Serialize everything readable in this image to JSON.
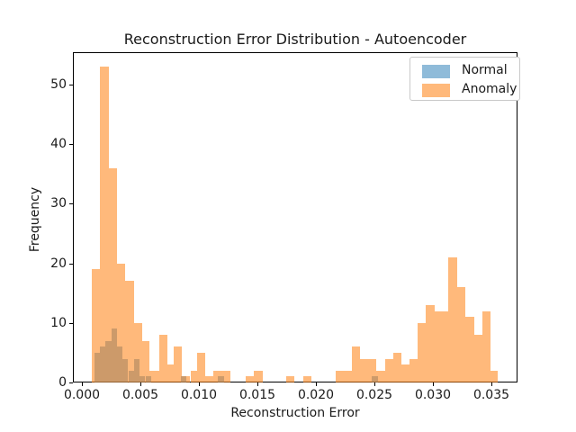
{
  "title": "Reconstruction Error Distribution - Autoencoder",
  "axes": {
    "xlabel": "Reconstruction Error",
    "ylabel": "Frequency"
  },
  "legend": {
    "items": [
      {
        "label": "Normal",
        "color": "rgba(31,119,180,0.5)"
      },
      {
        "label": "Anomaly",
        "color": "rgba(255,127,14,0.55)"
      }
    ]
  },
  "chart_data": {
    "type": "bar",
    "subtype": "overlapping-histograms",
    "title": "Reconstruction Error Distribution - Autoencoder",
    "xlabel": "Reconstruction Error",
    "ylabel": "Frequency",
    "grid": false,
    "legend_position": "upper right",
    "xlim": [
      -0.00077,
      0.03723
    ],
    "ylim": [
      0,
      55.4
    ],
    "xticks": {
      "values": [
        0.0,
        0.005,
        0.01,
        0.015,
        0.02,
        0.025,
        0.03,
        0.035
      ],
      "labels": [
        "0.000",
        "0.005",
        "0.010",
        "0.015",
        "0.020",
        "0.025",
        "0.030",
        "0.035"
      ]
    },
    "yticks": {
      "values": [
        0,
        10,
        20,
        30,
        40,
        50
      ],
      "labels": [
        "0",
        "10",
        "20",
        "30",
        "40",
        "50"
      ]
    },
    "series": [
      {
        "name": "Normal",
        "color": "rgba(31,119,180,0.5)",
        "bars": [
          [
            0.00105,
            0.00153,
            5
          ],
          [
            0.00153,
            0.00202,
            6
          ],
          [
            0.00202,
            0.00251,
            7
          ],
          [
            0.00251,
            0.00299,
            9
          ],
          [
            0.00299,
            0.00348,
            6
          ],
          [
            0.00348,
            0.00396,
            4
          ],
          [
            0.00396,
            0.00445,
            2
          ],
          [
            0.00445,
            0.00493,
            4
          ],
          [
            0.00493,
            0.00542,
            1
          ],
          [
            0.00542,
            0.0059,
            1
          ],
          [
            0.00845,
            0.00893,
            1
          ],
          [
            0.01162,
            0.01215,
            1
          ],
          [
            0.02479,
            0.02531,
            1
          ]
        ]
      },
      {
        "name": "Anomaly",
        "color": "rgba(255,127,14,0.55)",
        "bars": [
          [
            0.00082,
            0.00154,
            19
          ],
          [
            0.00154,
            0.00227,
            53
          ],
          [
            0.00227,
            0.003,
            36
          ],
          [
            0.003,
            0.00372,
            20
          ],
          [
            0.00372,
            0.00443,
            17
          ],
          [
            0.00443,
            0.00515,
            10
          ],
          [
            0.00515,
            0.00577,
            7
          ],
          [
            0.00577,
            0.00662,
            2
          ],
          [
            0.00662,
            0.00731,
            8
          ],
          [
            0.00731,
            0.00785,
            3
          ],
          [
            0.00785,
            0.00856,
            6
          ],
          [
            0.00856,
            0.00927,
            1
          ],
          [
            0.00927,
            0.00985,
            2
          ],
          [
            0.00985,
            0.01056,
            5
          ],
          [
            0.01056,
            0.01125,
            1
          ],
          [
            0.01125,
            0.01195,
            2
          ],
          [
            0.01195,
            0.01269,
            2
          ],
          [
            0.01402,
            0.01472,
            1
          ],
          [
            0.01472,
            0.01544,
            2
          ],
          [
            0.01749,
            0.01818,
            1
          ],
          [
            0.0189,
            0.01959,
            1
          ],
          [
            0.02167,
            0.02238,
            2
          ],
          [
            0.02238,
            0.02308,
            2
          ],
          [
            0.02308,
            0.02377,
            6
          ],
          [
            0.02377,
            0.02446,
            4
          ],
          [
            0.02446,
            0.02518,
            4
          ],
          [
            0.02518,
            0.0259,
            2
          ],
          [
            0.0259,
            0.02659,
            4
          ],
          [
            0.02659,
            0.02728,
            5
          ],
          [
            0.02728,
            0.02798,
            3
          ],
          [
            0.02798,
            0.02869,
            4
          ],
          [
            0.02869,
            0.02941,
            10
          ],
          [
            0.02941,
            0.03013,
            13
          ],
          [
            0.03013,
            0.03085,
            12
          ],
          [
            0.03085,
            0.03133,
            12
          ],
          [
            0.03133,
            0.0321,
            21
          ],
          [
            0.0321,
            0.03279,
            16
          ],
          [
            0.03279,
            0.03352,
            11
          ],
          [
            0.03352,
            0.03421,
            8
          ],
          [
            0.03421,
            0.03492,
            12
          ],
          [
            0.03492,
            0.03556,
            2
          ]
        ]
      }
    ]
  }
}
